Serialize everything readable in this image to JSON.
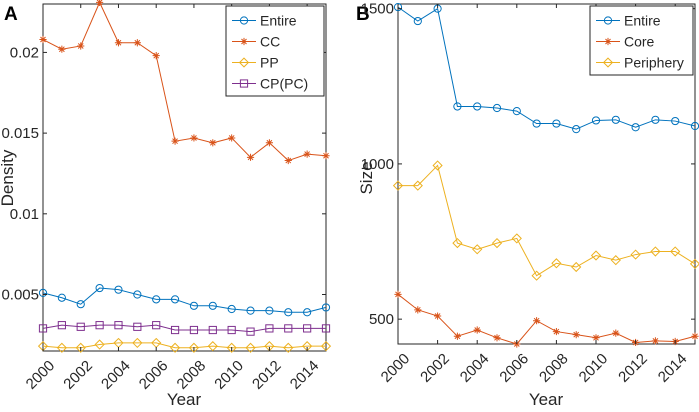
{
  "chart_data": [
    {
      "panel": "A",
      "type": "line",
      "xlabel": "Year",
      "ylabel": "Density",
      "xlim": [
        2000,
        2015
      ],
      "ylim": [
        0.0015,
        0.023
      ],
      "x": [
        2000,
        2001,
        2002,
        2003,
        2004,
        2005,
        2006,
        2007,
        2008,
        2009,
        2010,
        2011,
        2012,
        2013,
        2014,
        2015
      ],
      "xticks": [
        "2000",
        "2002",
        "2004",
        "2006",
        "2008",
        "2010",
        "2012",
        "2014"
      ],
      "yticks": [
        "0.005",
        "0.01",
        "0.015",
        "0.02"
      ],
      "legend_position": "top-right",
      "series": [
        {
          "name": "Entire",
          "color": "#0072BD",
          "marker": "circle",
          "values": [
            0.0051,
            0.0048,
            0.0044,
            0.0054,
            0.0053,
            0.005,
            0.0047,
            0.0047,
            0.0043,
            0.0043,
            0.0041,
            0.004,
            0.004,
            0.0039,
            0.0039,
            0.0042
          ]
        },
        {
          "name": "CC",
          "color": "#D95319",
          "marker": "star",
          "values": [
            0.0208,
            0.0202,
            0.0204,
            0.0231,
            0.0206,
            0.0206,
            0.0198,
            0.0145,
            0.0147,
            0.0144,
            0.0147,
            0.0135,
            0.0144,
            0.0133,
            0.0137,
            0.0136
          ]
        },
        {
          "name": "PP",
          "color": "#EDB120",
          "marker": "diamond",
          "values": [
            0.0018,
            0.0017,
            0.0017,
            0.0019,
            0.002,
            0.002,
            0.002,
            0.0017,
            0.0017,
            0.0018,
            0.0017,
            0.0017,
            0.0018,
            0.0017,
            0.0018,
            0.0018
          ]
        },
        {
          "name": "CP(PC)",
          "color": "#7E2F8E",
          "marker": "square",
          "values": [
            0.0029,
            0.0031,
            0.003,
            0.0031,
            0.0031,
            0.003,
            0.0031,
            0.0028,
            0.0028,
            0.0028,
            0.0028,
            0.0027,
            0.0029,
            0.0029,
            0.0029,
            0.0029
          ]
        }
      ]
    },
    {
      "panel": "B",
      "type": "line",
      "xlabel": "Year",
      "ylabel": "Size",
      "xlim": [
        2000,
        2015
      ],
      "ylim": [
        420,
        1515
      ],
      "x": [
        2000,
        2001,
        2002,
        2003,
        2004,
        2005,
        2006,
        2007,
        2008,
        2009,
        2010,
        2011,
        2012,
        2013,
        2014,
        2015
      ],
      "xticks": [
        "2000",
        "2002",
        "2004",
        "2006",
        "2008",
        "2010",
        "2012",
        "2014"
      ],
      "yticks": [
        "500",
        "1000",
        "1500"
      ],
      "legend_position": "top-right",
      "series": [
        {
          "name": "Entire",
          "color": "#0072BD",
          "marker": "circle",
          "values": [
            1505,
            1460,
            1500,
            1185,
            1185,
            1180,
            1170,
            1130,
            1130,
            1112,
            1140,
            1142,
            1118,
            1142,
            1138,
            1122
          ]
        },
        {
          "name": "Core",
          "color": "#D95319",
          "marker": "star",
          "values": [
            580,
            530,
            510,
            445,
            465,
            440,
            420,
            495,
            460,
            450,
            440,
            455,
            425,
            430,
            428,
            445
          ]
        },
        {
          "name": "Periphery",
          "color": "#EDB120",
          "marker": "diamond",
          "values": [
            930,
            930,
            995,
            745,
            725,
            745,
            760,
            640,
            680,
            668,
            705,
            690,
            708,
            718,
            718,
            678
          ]
        }
      ]
    }
  ]
}
